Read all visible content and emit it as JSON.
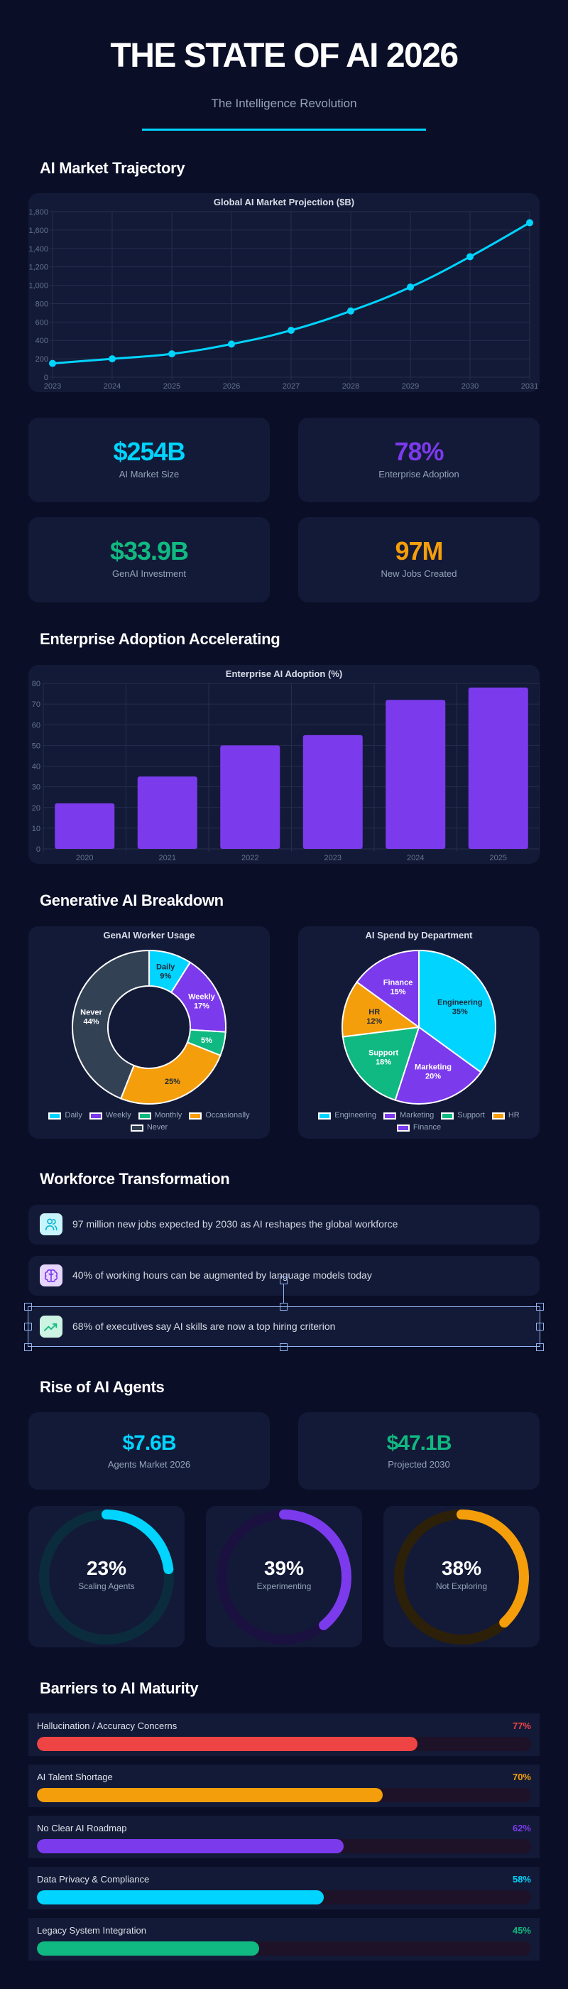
{
  "header": {
    "title": "THE STATE OF AI 2026",
    "subtitle": "The Intelligence Revolution",
    "accent": "#00d4ff"
  },
  "sections": {
    "market": "AI Market Trajectory",
    "adoption": "Enterprise Adoption Accelerating",
    "genai": "Generative AI Breakdown",
    "workforce": "Workforce Transformation",
    "agents": "Rise of AI Agents",
    "barriers": "Barriers to AI Maturity"
  },
  "stats": [
    {
      "value": "$254B",
      "label": "AI Market Size",
      "color": "#00d4ff"
    },
    {
      "value": "78%",
      "label": "Enterprise Adoption",
      "color": "#7c3aed"
    },
    {
      "value": "$33.9B",
      "label": "GenAI Investment",
      "color": "#10b981"
    },
    {
      "value": "97M",
      "label": "New Jobs Created",
      "color": "#f59e0b"
    }
  ],
  "chart_data": [
    {
      "type": "line",
      "title": "Global AI Market Projection ($B)",
      "x": [
        "2023",
        "2024",
        "2025",
        "2026",
        "2027",
        "2028",
        "2029",
        "2030",
        "2031"
      ],
      "series": [
        {
          "values": [
            150,
            200,
            254,
            360,
            510,
            720,
            980,
            1310,
            1680
          ],
          "color": "#00d4ff"
        }
      ],
      "ylim": [
        0,
        1800
      ],
      "yticks": [
        "0",
        "200",
        "400",
        "600",
        "800",
        "1,000",
        "1,200",
        "1,400",
        "1,600",
        "1,800"
      ],
      "grid": true
    },
    {
      "type": "bar",
      "title": "Enterprise AI Adoption (%)",
      "categories": [
        "2020",
        "2021",
        "2022",
        "2023",
        "2024",
        "2025"
      ],
      "values": [
        22,
        35,
        50,
        55,
        72,
        78
      ],
      "color": "#7c3aed",
      "ylim": [
        0,
        80
      ],
      "yticks": [
        "0",
        "10",
        "20",
        "30",
        "40",
        "50",
        "60",
        "70",
        "80"
      ],
      "grid": true
    },
    {
      "type": "pie",
      "variant": "doughnut",
      "title": "GenAI Worker Usage",
      "slices": [
        {
          "name": "Daily",
          "value": 9,
          "label": "9%",
          "show_name": true,
          "color": "#00d4ff",
          "text_color": "#1e293b"
        },
        {
          "name": "Weekly",
          "value": 17,
          "label": "17%",
          "show_name": true,
          "color": "#7c3aed",
          "text_color": "#ffffff"
        },
        {
          "name": "Monthly",
          "value": 5,
          "label": "5%",
          "show_name": false,
          "color": "#10b981",
          "text_color": "#ffffff"
        },
        {
          "name": "Occasionally",
          "value": 25,
          "label": "25%",
          "show_name": false,
          "color": "#f59e0b",
          "text_color": "#1e293b"
        },
        {
          "name": "Never",
          "value": 44,
          "label": "44%",
          "show_name": true,
          "color": "#334155",
          "text_color": "#ffffff"
        }
      ],
      "legend": "bottom"
    },
    {
      "type": "pie",
      "title": "AI Spend by Department",
      "slices": [
        {
          "name": "Engineering",
          "value": 35,
          "label": "35%",
          "show_name": true,
          "color": "#00d4ff",
          "text_color": "#1e293b"
        },
        {
          "name": "Marketing",
          "value": 20,
          "label": "20%",
          "show_name": true,
          "color": "#7c3aed",
          "text_color": "#ffffff"
        },
        {
          "name": "Support",
          "value": 18,
          "label": "18%",
          "show_name": true,
          "color": "#10b981",
          "text_color": "#ffffff"
        },
        {
          "name": "HR",
          "value": 12,
          "label": "12%",
          "show_name": true,
          "color": "#f59e0b",
          "text_color": "#1e293b"
        },
        {
          "name": "Finance",
          "value": 15,
          "label": "15%",
          "show_name": true,
          "color": "#7c3aed",
          "text_color": "#ffffff"
        }
      ],
      "legend": "bottom"
    }
  ],
  "workforce": [
    {
      "icon": "users-icon",
      "text": "97 million new jobs expected by 2030 as AI reshapes the global workforce",
      "color": "#06b6d4",
      "bg": "#c8f5fd"
    },
    {
      "icon": "brain-icon",
      "text": "40% of working hours can be augmented by language models today",
      "color": "#7c3aed",
      "bg": "#e6d6fe"
    },
    {
      "icon": "trending-up-icon",
      "text": "68% of executives say AI skills are now a top hiring criterion",
      "color": "#10b981",
      "bg": "#cdf3e2"
    }
  ],
  "agents": {
    "stats": [
      {
        "value": "$7.6B",
        "label": "Agents Market 2026",
        "color": "#00d4ff"
      },
      {
        "value": "$47.1B",
        "label": "Projected 2030",
        "color": "#10b981"
      }
    ],
    "rings": [
      {
        "value": "23%",
        "percent": 23,
        "label": "Scaling Agents",
        "color": "#00d4ff",
        "track": "#0b2c3d"
      },
      {
        "value": "39%",
        "percent": 39,
        "label": "Experimenting",
        "color": "#7c3aed",
        "track": "#1a1140"
      },
      {
        "value": "38%",
        "percent": 38,
        "label": "Not Exploring",
        "color": "#f59e0b",
        "track": "#2d2008"
      }
    ]
  },
  "barriers": [
    {
      "label": "Hallucination / Accuracy Concerns",
      "value": "77%",
      "percent": 77,
      "color": "#ef4444"
    },
    {
      "label": "AI Talent Shortage",
      "value": "70%",
      "percent": 70,
      "color": "#f59e0b"
    },
    {
      "label": "No Clear AI Roadmap",
      "value": "62%",
      "percent": 62,
      "color": "#7c3aed"
    },
    {
      "label": "Data Privacy & Compliance",
      "value": "58%",
      "percent": 58,
      "color": "#00d4ff"
    },
    {
      "label": "Legacy System Integration",
      "value": "45%",
      "percent": 45,
      "color": "#10b981"
    }
  ]
}
